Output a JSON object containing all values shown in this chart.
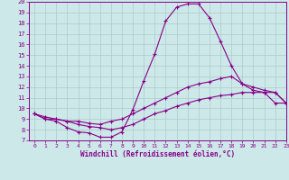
{
  "xlabel": "Windchill (Refroidissement éolien,°C)",
  "xlim": [
    -0.5,
    23
  ],
  "ylim": [
    7,
    20
  ],
  "yticks": [
    7,
    8,
    9,
    10,
    11,
    12,
    13,
    14,
    15,
    16,
    17,
    18,
    19,
    20
  ],
  "xticks": [
    0,
    1,
    2,
    3,
    4,
    5,
    6,
    7,
    8,
    9,
    10,
    11,
    12,
    13,
    14,
    15,
    16,
    17,
    18,
    19,
    20,
    21,
    22,
    23
  ],
  "bg_color": "#cce8e8",
  "line_color": "#880088",
  "grid_color": "#aacccc",
  "curve1_x": [
    0,
    1,
    2,
    3,
    4,
    5,
    6,
    7,
    8,
    9,
    10,
    11,
    12,
    13,
    14,
    15,
    16,
    17,
    18,
    19,
    20,
    21,
    22,
    23
  ],
  "curve1_y": [
    9.5,
    9.0,
    8.8,
    8.2,
    7.8,
    7.7,
    7.3,
    7.3,
    7.8,
    9.9,
    12.6,
    15.1,
    18.2,
    19.5,
    19.8,
    19.8,
    18.5,
    16.3,
    14.0,
    12.3,
    11.7,
    11.5,
    10.5,
    10.5
  ],
  "curve2_x": [
    0,
    1,
    2,
    3,
    4,
    5,
    6,
    7,
    8,
    9,
    10,
    11,
    12,
    13,
    14,
    15,
    16,
    17,
    18,
    19,
    20,
    21,
    22,
    23
  ],
  "curve2_y": [
    9.5,
    9.2,
    9.0,
    8.8,
    8.8,
    8.6,
    8.5,
    8.8,
    9.0,
    9.5,
    10.0,
    10.5,
    11.0,
    11.5,
    12.0,
    12.3,
    12.5,
    12.8,
    13.0,
    12.3,
    12.0,
    11.7,
    11.5,
    10.5
  ],
  "curve3_x": [
    0,
    1,
    2,
    3,
    4,
    5,
    6,
    7,
    8,
    9,
    10,
    11,
    12,
    13,
    14,
    15,
    16,
    17,
    18,
    19,
    20,
    21,
    22,
    23
  ],
  "curve3_y": [
    9.5,
    9.0,
    9.0,
    8.8,
    8.5,
    8.3,
    8.2,
    8.0,
    8.2,
    8.5,
    9.0,
    9.5,
    9.8,
    10.2,
    10.5,
    10.8,
    11.0,
    11.2,
    11.3,
    11.5,
    11.5,
    11.5,
    11.5,
    10.5
  ]
}
